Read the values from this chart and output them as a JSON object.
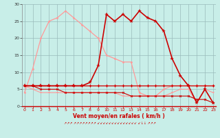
{
  "hours": [
    0,
    1,
    2,
    3,
    4,
    5,
    6,
    7,
    8,
    9,
    10,
    11,
    12,
    13,
    14,
    15,
    16,
    17,
    18,
    19,
    20,
    21,
    22,
    23
  ],
  "wind_gust_light": [
    4,
    11,
    20,
    25,
    26,
    28,
    26,
    24,
    22,
    20,
    15,
    14,
    13,
    13,
    4,
    3,
    3,
    5,
    6,
    6,
    6,
    6,
    6,
    6
  ],
  "wind_speed_dark": [
    6,
    6,
    6,
    6,
    6,
    6,
    6,
    6,
    7,
    12,
    27,
    25,
    27,
    25,
    28,
    26,
    25,
    22,
    14,
    9,
    6,
    1,
    5,
    1
  ],
  "wind_speed_med": [
    6,
    6,
    6,
    6,
    6,
    6,
    6,
    6,
    6,
    6,
    6,
    6,
    6,
    6,
    6,
    6,
    6,
    6,
    6,
    6,
    6,
    6,
    6,
    6
  ],
  "wind_flat1": [
    6,
    6,
    6,
    6,
    6,
    6,
    6,
    6,
    6,
    6,
    6,
    6,
    6,
    6,
    6,
    6,
    6,
    6,
    6,
    6,
    6,
    6,
    6,
    6
  ],
  "wind_decline": [
    6,
    6,
    5,
    5,
    5,
    4,
    4,
    4,
    4,
    4,
    4,
    4,
    4,
    3,
    3,
    3,
    3,
    3,
    3,
    3,
    3,
    2,
    2,
    1
  ],
  "wind_low": [
    6,
    5,
    4,
    4,
    4,
    4,
    4,
    4,
    4,
    4,
    4,
    4,
    3,
    3,
    3,
    3,
    3,
    3,
    4,
    5,
    5,
    1,
    5,
    4
  ],
  "bg_color": "#c8eee8",
  "grid_color": "#99bbbb",
  "line_light": "#ff9999",
  "line_dark": "#cc0000",
  "line_med": "#ff4444",
  "xlabel": "Vent moyen/en rafales ( km/h )",
  "ylim": [
    0,
    30
  ],
  "xlim": [
    0,
    23
  ],
  "yticks": [
    0,
    5,
    10,
    15,
    20,
    25,
    30
  ],
  "xticks": [
    0,
    1,
    2,
    3,
    4,
    5,
    6,
    7,
    8,
    9,
    10,
    11,
    12,
    13,
    14,
    15,
    16,
    17,
    18,
    19,
    20,
    21,
    22,
    23
  ]
}
